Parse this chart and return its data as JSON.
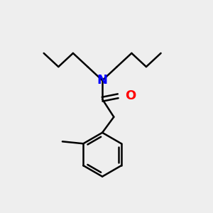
{
  "background_color": "#eeeeee",
  "bond_color": "#000000",
  "N_color": "#0000ff",
  "O_color": "#ff0000",
  "bond_width": 1.8,
  "figsize": [
    3.0,
    3.0
  ],
  "dpi": 100,
  "N_fontsize": 13,
  "O_fontsize": 13
}
